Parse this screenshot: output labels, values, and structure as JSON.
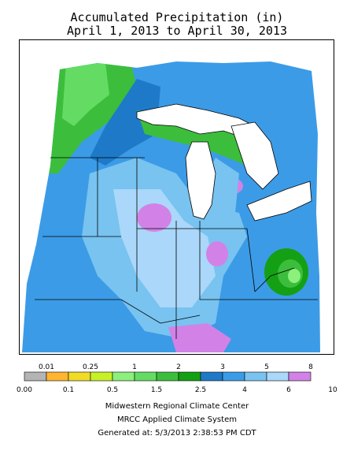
{
  "title": {
    "line1": "Accumulated Precipitation (in)",
    "line2": "April 1, 2013 to April 30, 2013"
  },
  "legend": {
    "top_labels": [
      "0.01",
      "0.25",
      "1",
      "2",
      "3",
      "5",
      "8"
    ],
    "bottom_labels": [
      "0.00",
      "0.1",
      "0.5",
      "1.5",
      "2.5",
      "4",
      "6",
      "10"
    ],
    "colors": [
      "#b4b4b4",
      "#ffb432",
      "#f0dc28",
      "#c8f028",
      "#8cf07c",
      "#64dc64",
      "#3cbe3c",
      "#14a014",
      "#1e7ac8",
      "#3c9be6",
      "#78c3f0",
      "#aad7fa",
      "#d282e6"
    ]
  },
  "footer": {
    "line1": "Midwestern Regional Climate Center",
    "line2": "MRCC Applied Climate System",
    "line3": "Generated at: 5/3/2013 2:38:53 PM CDT"
  }
}
